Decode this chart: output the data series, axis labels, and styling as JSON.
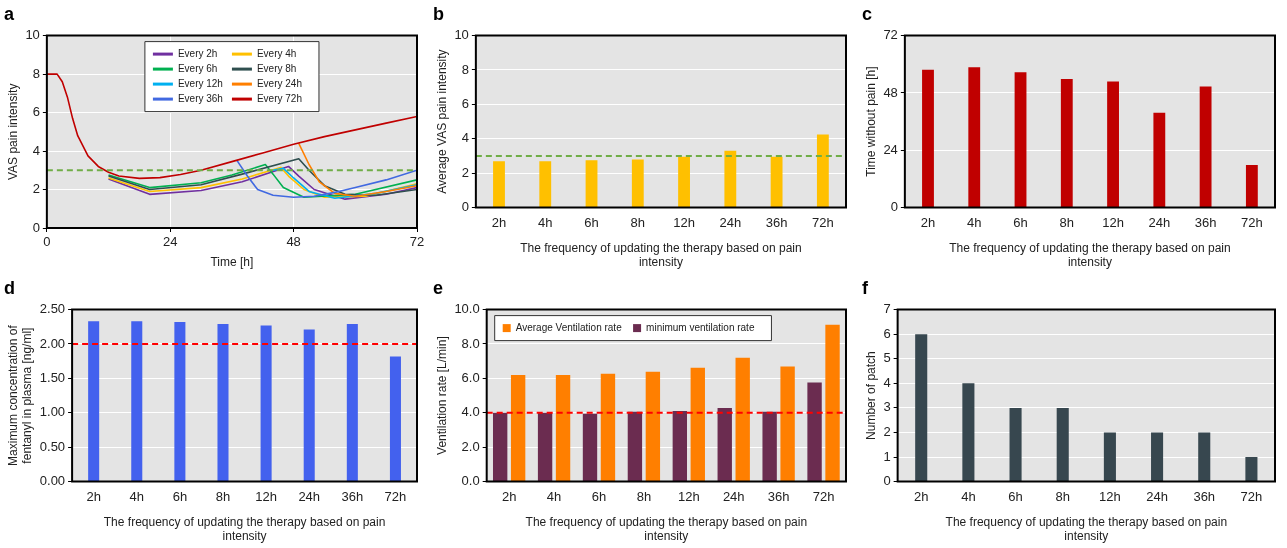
{
  "chart_data": [
    {
      "type": "line",
      "title": "a",
      "xlabel": "Time [h]",
      "ylabel": "VAS pain intensity",
      "xlim": [
        0,
        72
      ],
      "xticks": [
        0,
        24,
        48,
        72
      ],
      "ylim": [
        0,
        10
      ],
      "yticks": [
        0,
        2,
        4,
        6,
        8,
        10
      ],
      "grid": true,
      "legend": "top",
      "ref_lines": [
        {
          "axis": "y",
          "value": 3,
          "color": "#70ad47",
          "line_style": "dashed"
        }
      ],
      "series": [
        {
          "name": "Every 2h",
          "color": "#7030a0",
          "x": [
            12,
            20,
            30,
            38,
            47,
            49,
            52,
            58,
            66,
            72
          ],
          "values": [
            2.55,
            1.75,
            1.95,
            2.4,
            3.2,
            2.7,
            2.0,
            1.5,
            1.75,
            2.1
          ]
        },
        {
          "name": "Every 4h",
          "color": "#ffc000",
          "x": [
            12,
            20,
            30,
            38,
            45.5,
            47,
            50,
            54,
            62,
            72
          ],
          "values": [
            2.6,
            1.9,
            2.1,
            2.55,
            3.15,
            2.7,
            2.0,
            1.6,
            1.65,
            2.3
          ]
        },
        {
          "name": "Every 6h",
          "color": "#00b050",
          "x": [
            12,
            20,
            30,
            36,
            42.5,
            44,
            46,
            50,
            60,
            72
          ],
          "values": [
            2.75,
            2.1,
            2.35,
            2.75,
            3.3,
            2.8,
            2.1,
            1.6,
            1.75,
            2.5
          ]
        },
        {
          "name": "Every 8h",
          "color": "#2f4f4f",
          "x": [
            12,
            20,
            30,
            38,
            49,
            51,
            54,
            58,
            64,
            72
          ],
          "values": [
            2.7,
            2.0,
            2.25,
            2.8,
            3.6,
            3.0,
            2.2,
            1.75,
            1.7,
            2.0
          ]
        },
        {
          "name": "Every 12h",
          "color": "#00b0f0",
          "x": [
            44,
            46,
            48,
            51,
            56,
            64,
            72
          ],
          "values": [
            3.0,
            3.1,
            2.6,
            1.9,
            1.55,
            1.8,
            2.25
          ]
        },
        {
          "name": "Every 24h",
          "color": "#ff7f00",
          "x": [
            49,
            51,
            53,
            56,
            60,
            66,
            72
          ],
          "values": [
            4.4,
            3.3,
            2.4,
            1.8,
            1.65,
            1.9,
            2.2
          ]
        },
        {
          "name": "Every 36h",
          "color": "#4169e1",
          "x": [
            37,
            39,
            41,
            44,
            48,
            52,
            56,
            60,
            66,
            72
          ],
          "values": [
            3.5,
            2.7,
            2.0,
            1.7,
            1.6,
            1.65,
            1.85,
            2.1,
            2.5,
            3.0
          ]
        },
        {
          "name": "Every 72h",
          "color": "#c00000",
          "x": [
            0,
            2,
            3,
            4,
            5,
            6,
            8,
            10,
            12,
            14,
            18,
            22,
            26,
            30,
            36,
            42,
            48,
            54,
            60,
            66,
            72
          ],
          "values": [
            8,
            8,
            7.6,
            6.8,
            5.7,
            4.8,
            3.75,
            3.2,
            2.9,
            2.7,
            2.58,
            2.62,
            2.78,
            3.0,
            3.45,
            3.9,
            4.35,
            4.75,
            5.1,
            5.45,
            5.8
          ]
        }
      ]
    },
    {
      "type": "bar",
      "title": "b",
      "xlabel": "The frequency of updating the therapy based on pain intensity",
      "ylabel": "Average VAS pain intensity",
      "categories": [
        "2h",
        "4h",
        "6h",
        "8h",
        "12h",
        "24h",
        "36h",
        "72h"
      ],
      "ylim": [
        0,
        10
      ],
      "yticks": [
        0,
        2,
        4,
        6,
        8,
        10
      ],
      "grid": "y",
      "ref_lines": [
        {
          "axis": "y",
          "value": 3,
          "color": "#70ad47",
          "line_style": "dashed"
        }
      ],
      "series": [
        {
          "color": "#ffc000",
          "values": [
            2.7,
            2.7,
            2.75,
            2.8,
            2.95,
            3.3,
            2.95,
            4.25
          ]
        }
      ]
    },
    {
      "type": "bar",
      "title": "c",
      "xlabel": "The frequency of updating the therapy based on pain intensity",
      "ylabel": "Time without pain [h]",
      "categories": [
        "2h",
        "4h",
        "6h",
        "8h",
        "12h",
        "24h",
        "36h",
        "72h"
      ],
      "ylim": [
        0,
        72
      ],
      "yticks": [
        0,
        24,
        48,
        72
      ],
      "grid": "y",
      "series": [
        {
          "color": "#c00000",
          "values": [
            57.7,
            58.7,
            56.7,
            53.8,
            52.8,
            39.7,
            50.7,
            17.8
          ]
        }
      ]
    },
    {
      "type": "bar",
      "title": "d",
      "xlabel": "The frequency of updating the therapy based on pain intensity",
      "ylabel": "Maximum concentration of fentanyl in plasma [ng/ml]",
      "categories": [
        "2h",
        "4h",
        "6h",
        "8h",
        "12h",
        "24h",
        "36h",
        "72h"
      ],
      "ylim": [
        0,
        2.5
      ],
      "yticks": [
        {
          "value": 0,
          "label": "0.00"
        },
        {
          "value": 0.5,
          "label": "0.50"
        },
        {
          "value": 1,
          "label": "1.00"
        },
        {
          "value": 1.5,
          "label": "1.50"
        },
        {
          "value": 2,
          "label": "2.00"
        },
        {
          "value": 2.5,
          "label": "2.50"
        }
      ],
      "grid": "y",
      "ref_lines": [
        {
          "axis": "y",
          "value": 2,
          "color": "#ff0000",
          "line_style": "dashed"
        }
      ],
      "series": [
        {
          "color": "#4361ee",
          "values": [
            2.33,
            2.33,
            2.32,
            2.29,
            2.27,
            2.21,
            2.29,
            1.82
          ]
        }
      ]
    },
    {
      "type": "bar",
      "title": "e",
      "xlabel": "The frequency of updating the therapy based on pain intensity",
      "ylabel": "Ventilation rate [L/min]",
      "categories": [
        "2h",
        "4h",
        "6h",
        "8h",
        "12h",
        "24h",
        "36h",
        "72h"
      ],
      "ylim": [
        0,
        10
      ],
      "yticks": [
        {
          "value": 0,
          "label": "0.0"
        },
        {
          "value": 2,
          "label": "2.0"
        },
        {
          "value": 4,
          "label": "4.0"
        },
        {
          "value": 6,
          "label": "6.0"
        },
        {
          "value": 8,
          "label": "8.0"
        },
        {
          "value": 10,
          "label": "10.0"
        }
      ],
      "grid": "y",
      "legend": "top left",
      "ref_lines": [
        {
          "axis": "y",
          "value": 4,
          "color": "#ff0000",
          "line_style": "dashed"
        }
      ],
      "series": [
        {
          "name": "Average Ventilation rate",
          "color": "#ff7f00",
          "values": [
            6.2,
            6.2,
            6.27,
            6.38,
            6.62,
            7.2,
            6.69,
            9.12
          ]
        },
        {
          "name": "minimum ventilation rate",
          "color": "#6b2c50",
          "values": [
            4.0,
            4.0,
            3.95,
            4.06,
            4.1,
            4.28,
            4.06,
            5.76
          ]
        }
      ]
    },
    {
      "type": "bar",
      "title": "f",
      "xlabel": "The frequency of updating the therapy based on pain intensity",
      "ylabel": "Number of patch",
      "categories": [
        "2h",
        "4h",
        "6h",
        "8h",
        "12h",
        "24h",
        "36h",
        "72h"
      ],
      "ylim": [
        0,
        7
      ],
      "yticks": [
        0,
        1,
        2,
        3,
        4,
        5,
        6,
        7
      ],
      "grid": "y",
      "series": [
        {
          "color": "#37474f",
          "values": [
            6,
            4,
            3,
            3,
            2,
            2,
            2,
            1
          ]
        }
      ]
    }
  ]
}
